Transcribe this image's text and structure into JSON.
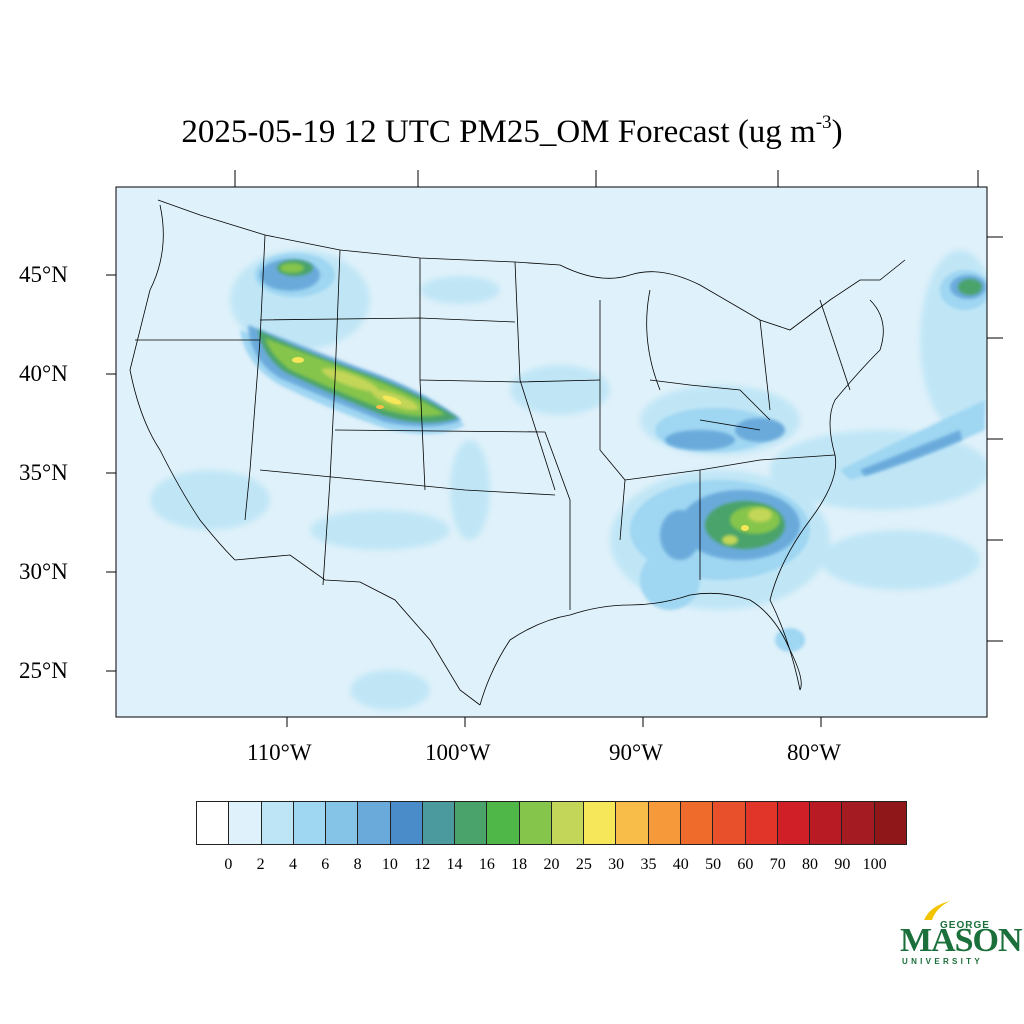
{
  "title": {
    "main": "2025-05-19 12 UTC PM25_OM Forecast (ug m",
    "superscript": "-3",
    "close": ")"
  },
  "map": {
    "latitude_labels": [
      "45°N",
      "40°N",
      "35°N",
      "30°N",
      "25°N"
    ],
    "longitude_labels": [
      "110°W",
      "100°W",
      "90°W",
      "80°W"
    ],
    "background_color": "#dff1fa",
    "boundary_color": "#000000"
  },
  "colorbar": {
    "colors": [
      "#ffffff",
      "#dff1fa",
      "#bde5f6",
      "#9fd6f2",
      "#86c4e7",
      "#6aaadb",
      "#4a8bc9",
      "#4b9a9d",
      "#4aa36b",
      "#4fb648",
      "#86c54b",
      "#c4d659",
      "#f5e65a",
      "#f7bd48",
      "#f5993b",
      "#ef6b2c",
      "#e8502b",
      "#e03528",
      "#d11f27",
      "#b81b24",
      "#a51b22",
      "#8f1719"
    ],
    "labels": [
      "0",
      "2",
      "4",
      "6",
      "8",
      "10",
      "12",
      "14",
      "16",
      "18",
      "20",
      "25",
      "30",
      "35",
      "40",
      "50",
      "60",
      "70",
      "80",
      "90",
      "100"
    ]
  },
  "logo": {
    "line1": "GEORGE",
    "line2": "MASON",
    "line3": "UNIVERSITY",
    "color": "#1a6f3b",
    "accent": "#f2c500"
  }
}
